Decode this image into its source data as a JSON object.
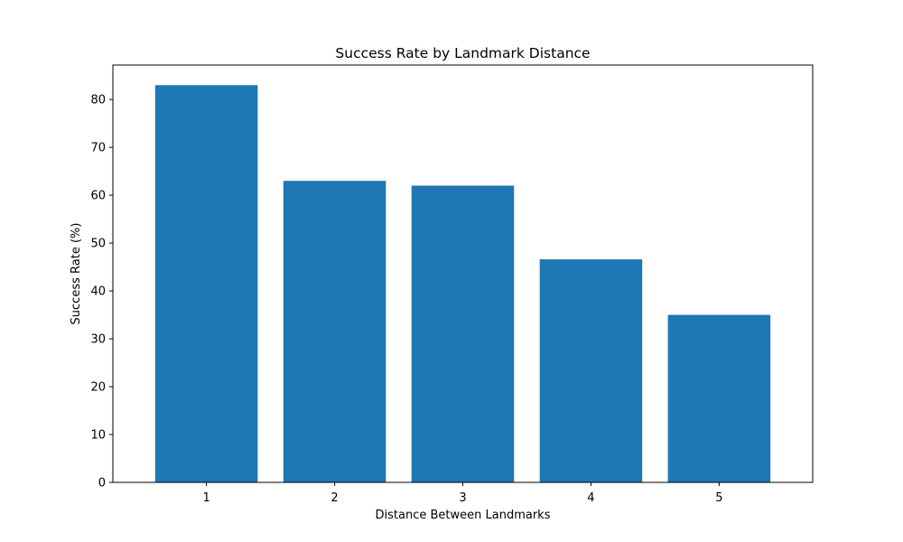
{
  "chart_data": {
    "type": "bar",
    "title": "Success Rate by Landmark Distance",
    "xlabel": "Distance Between Landmarks",
    "ylabel": "Success Rate (%)",
    "categories": [
      "1",
      "2",
      "3",
      "4",
      "5"
    ],
    "values": [
      83.0,
      63.0,
      62.0,
      46.6,
      35.0
    ],
    "ylim": [
      0,
      87.2
    ],
    "yticks": [
      0,
      10,
      20,
      30,
      40,
      50,
      60,
      70,
      80
    ],
    "grid": false,
    "bar_color": "#1f77b4"
  }
}
